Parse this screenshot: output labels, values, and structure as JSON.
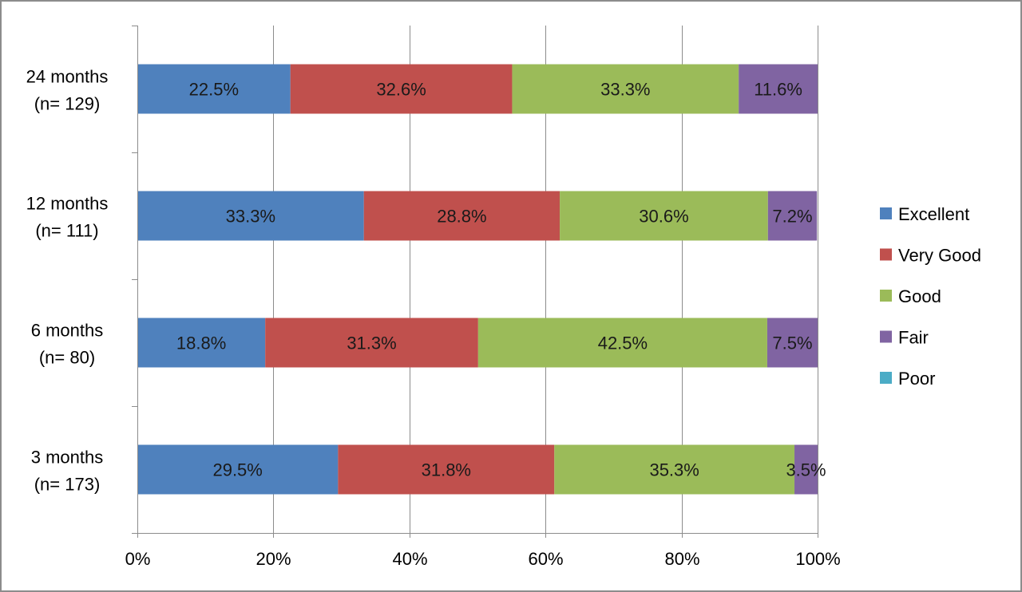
{
  "chart_data": {
    "type": "bar",
    "orientation": "horizontal",
    "stacked": true,
    "percent_stacked": true,
    "categories": [
      [
        "24 months",
        "(n= 129)"
      ],
      [
        "12 months",
        "(n= 111)"
      ],
      [
        "6 months",
        "(n= 80)"
      ],
      [
        "3 months",
        "(n= 173)"
      ]
    ],
    "series": [
      {
        "name": "Excellent",
        "color": "#4f81bd",
        "values": [
          22.5,
          33.3,
          18.8,
          29.5
        ],
        "labels": [
          "22.5%",
          "33.3%",
          "18.8%",
          "29.5%"
        ]
      },
      {
        "name": "Very Good",
        "color": "#c0504d",
        "values": [
          32.6,
          28.8,
          31.3,
          31.8
        ],
        "labels": [
          "32.6%",
          "28.8%",
          "31.3%",
          "31.8%"
        ]
      },
      {
        "name": "Good",
        "color": "#9bbb59",
        "values": [
          33.3,
          30.6,
          42.5,
          35.3
        ],
        "labels": [
          "33.3%",
          "30.6%",
          "42.5%",
          "35.3%"
        ]
      },
      {
        "name": "Fair",
        "color": "#8064a2",
        "values": [
          11.6,
          7.2,
          7.5,
          3.5
        ],
        "labels": [
          "11.6%",
          "7.2%",
          "7.5%",
          "3.5%"
        ]
      },
      {
        "name": "Poor",
        "color": "#4bacc6",
        "values": [
          0,
          0,
          0,
          0
        ],
        "labels": [
          "",
          "",
          "",
          ""
        ]
      }
    ],
    "xlim": [
      0,
      100
    ],
    "x_ticks": [
      0,
      20,
      40,
      60,
      80,
      100
    ],
    "x_tick_labels": [
      "0%",
      "20%",
      "40%",
      "60%",
      "80%",
      "100%"
    ],
    "title": "",
    "xlabel": "",
    "ylabel": "",
    "grid": "vertical",
    "legend_position": "right"
  }
}
